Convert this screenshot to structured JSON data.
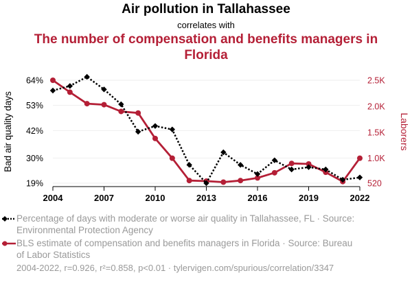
{
  "title": "Air pollution in Tallahassee",
  "subtitle": "correlates with",
  "title2": "The number of compensation and benefits managers in Florida",
  "chart_data": {
    "type": "line",
    "x": [
      2004,
      2005,
      2006,
      2007,
      2008,
      2009,
      2010,
      2011,
      2012,
      2013,
      2014,
      2015,
      2016,
      2017,
      2018,
      2019,
      2020,
      2021,
      2022
    ],
    "series": [
      {
        "name": "Percentage of days with moderate or worse air quality in Tallahassee, FL",
        "axis": "left",
        "color": "#000000",
        "style": "dotted",
        "marker": "diamond",
        "values": [
          59.5,
          61.5,
          65.5,
          60,
          53.5,
          41.5,
          44,
          42.5,
          27,
          19,
          32.5,
          27,
          23,
          29,
          25,
          26,
          25,
          20.5,
          21.5
        ]
      },
      {
        "name": "BLS estimate of compensation and benefits managers in Florida",
        "axis": "right",
        "color": "#b41f36",
        "style": "solid",
        "marker": "circle",
        "values": [
          2500,
          2270,
          2050,
          2030,
          1900,
          1870,
          1380,
          1000,
          570,
          560,
          540,
          570,
          620,
          720,
          900,
          890,
          730,
          550,
          1000
        ]
      }
    ],
    "xticks": [
      2004,
      2007,
      2010,
      2013,
      2016,
      2019,
      2022
    ],
    "ylabel_left": "Bad air quality days",
    "ylabel_right": "Laborers",
    "left_ticks": [
      {
        "v": 19,
        "label": "19%"
      },
      {
        "v": 30,
        "label": "30%"
      },
      {
        "v": 42,
        "label": "42%"
      },
      {
        "v": 53,
        "label": "53%"
      },
      {
        "v": 64,
        "label": "64%"
      }
    ],
    "right_ticks": [
      {
        "v": 520,
        "label": "520"
      },
      {
        "v": 1000,
        "label": "1.0K"
      },
      {
        "v": 1500,
        "label": "1.5K"
      },
      {
        "v": 2000,
        "label": "2.0K"
      },
      {
        "v": 2500,
        "label": "2.5K"
      }
    ],
    "left_range": [
      19,
      64
    ],
    "right_range": [
      520,
      2500
    ],
    "grid": true
  },
  "legend": {
    "line1": "Percentage of days with moderate or worse air quality in Tallahassee, FL · Source: Environmental Protection Agency",
    "line2": "BLS estimate of compensation and benefits managers in Florida · Source: Bureau of Labor Statistics"
  },
  "footer": "2004-2022, r=0.926, r²=0.858, p<0.01 · tylervigen.com/spurious/correlation/3347",
  "colors": {
    "primary": "#000000",
    "secondary": "#b41f36",
    "grid": "#eeeeee",
    "muted": "#999999"
  }
}
